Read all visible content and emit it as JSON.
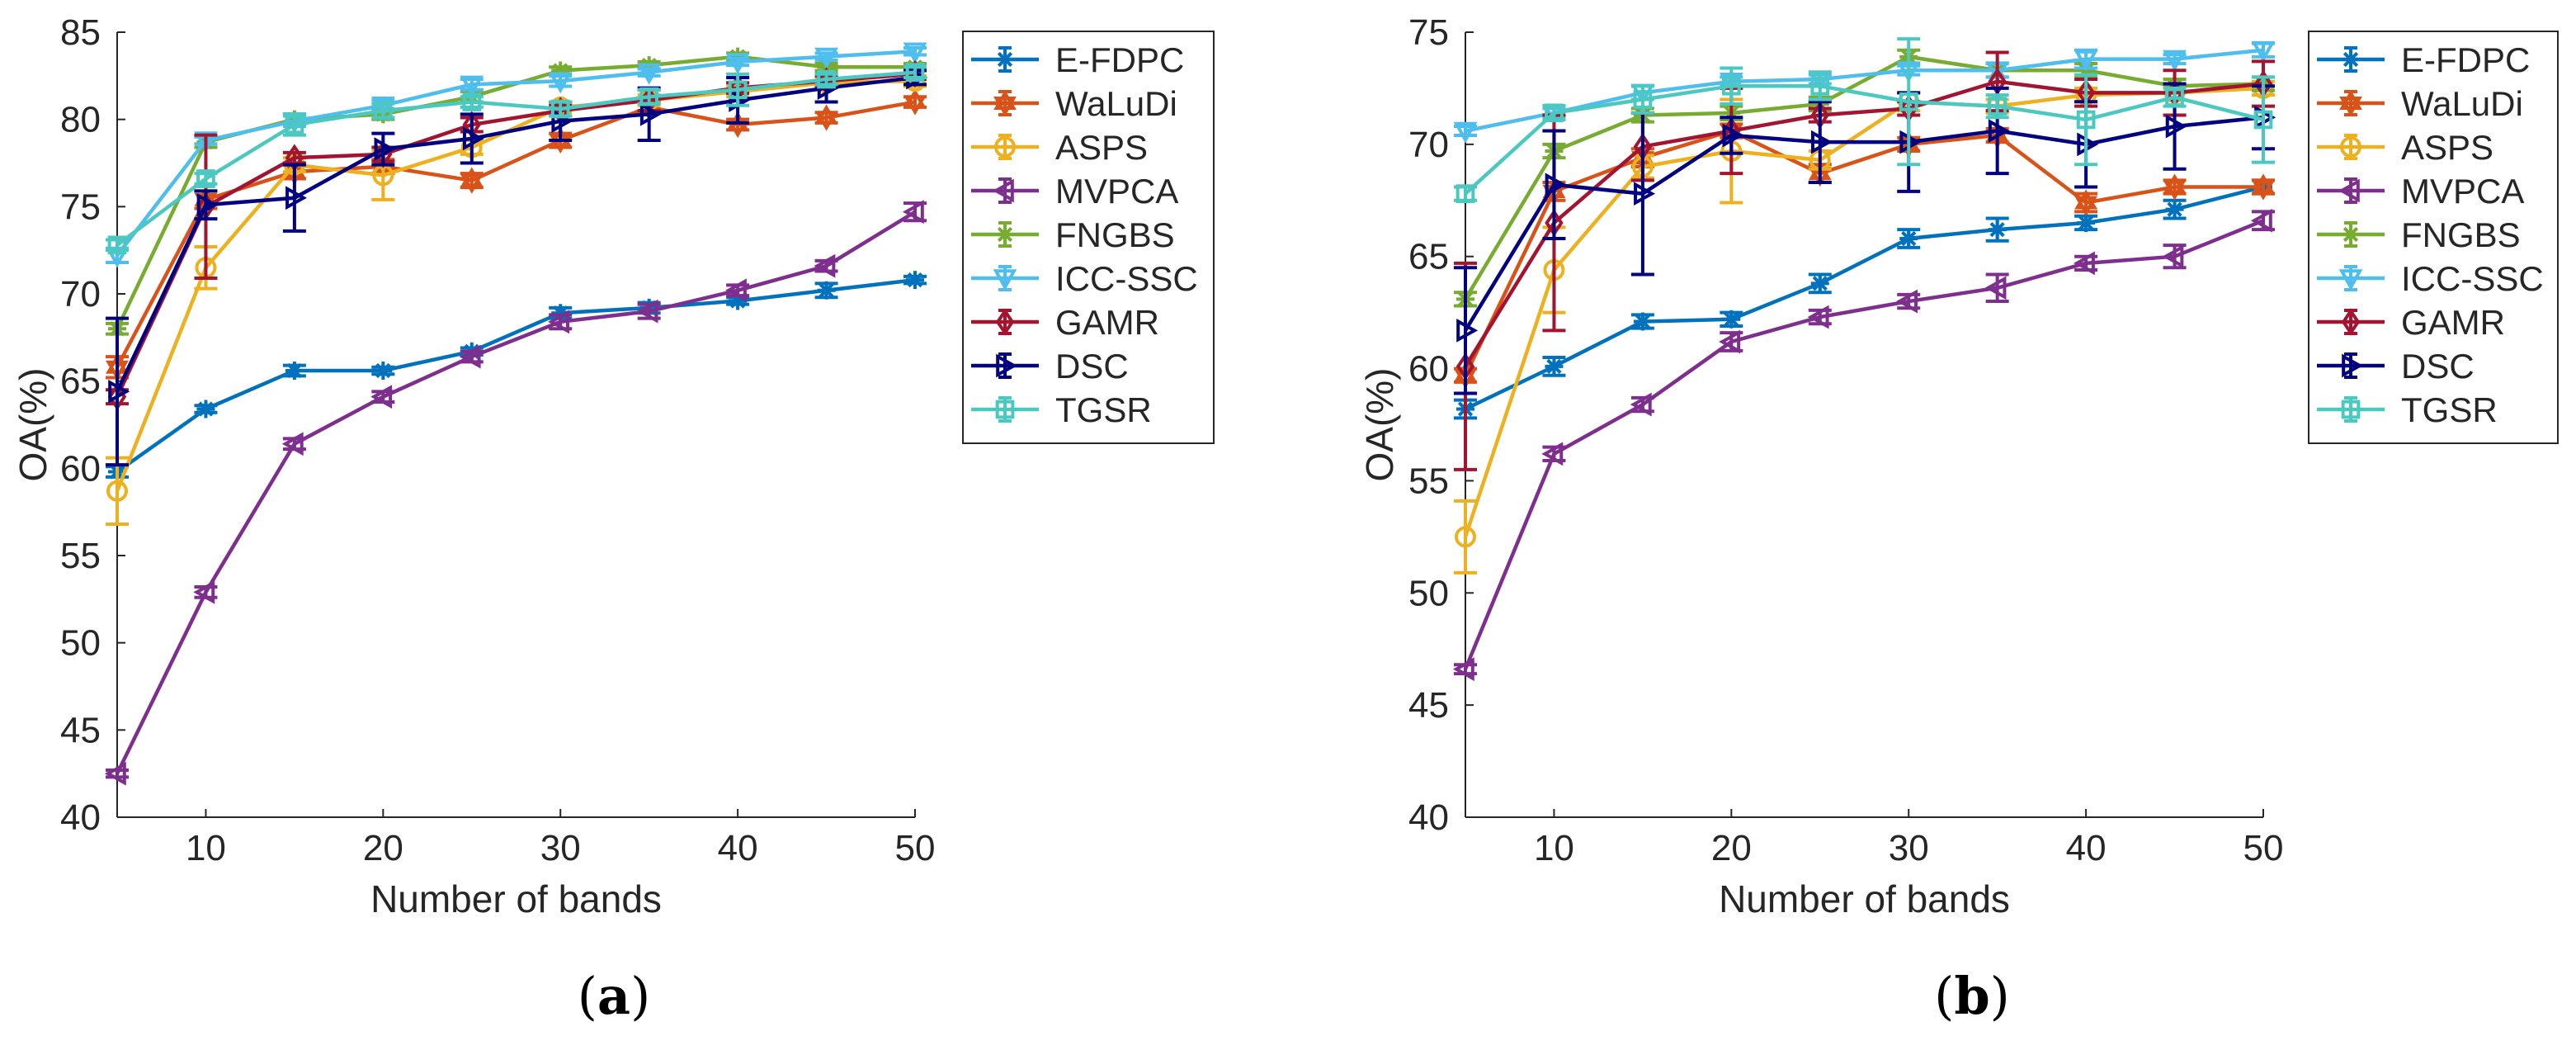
{
  "chart_data": [
    {
      "type": "line",
      "panel_label_open": "(",
      "panel_label_letter": "a",
      "panel_label_close": ")",
      "xlabel": "Number of bands",
      "ylabel": "OA(%)",
      "x": [
        5,
        10,
        15,
        20,
        25,
        30,
        35,
        40,
        45,
        50
      ],
      "xlim": [
        5,
        50
      ],
      "ylim": [
        40,
        85
      ],
      "xticks": [
        10,
        20,
        30,
        40,
        50
      ],
      "yticks": [
        40,
        45,
        50,
        55,
        60,
        65,
        70,
        75,
        80,
        85
      ],
      "grid": false,
      "legend_position": "outside-right-top",
      "series": [
        {
          "name": "E-FDPC",
          "color": "#0072BD",
          "marker": "asterisk",
          "values": [
            59.8,
            63.4,
            65.6,
            65.6,
            66.7,
            68.9,
            69.2,
            69.6,
            70.2,
            70.8
          ],
          "err": [
            0.3,
            0.2,
            0.3,
            0.2,
            0.2,
            0.3,
            0.3,
            0.2,
            0.4,
            0.2
          ]
        },
        {
          "name": "WaLuDi",
          "color": "#D95319",
          "marker": "hexagram",
          "values": [
            65.8,
            75.4,
            77.0,
            77.3,
            76.5,
            78.8,
            80.7,
            79.7,
            80.1,
            81.0
          ],
          "err": [
            0.6,
            0.5,
            0.4,
            0.4,
            0.4,
            0.4,
            0.3,
            0.3,
            0.3,
            0.3
          ]
        },
        {
          "name": "ASPS",
          "color": "#EDB120",
          "marker": "circle",
          "values": [
            58.7,
            71.5,
            77.4,
            76.8,
            78.4,
            80.7,
            81.1,
            81.6,
            82.1,
            82.2
          ],
          "err": [
            1.9,
            1.2,
            0.4,
            1.4,
            0.4,
            0.3,
            0.3,
            0.3,
            0.3,
            0.3
          ]
        },
        {
          "name": "MVPCA",
          "color": "#7E2F8E",
          "marker": "triangle-left",
          "values": [
            42.5,
            52.9,
            61.4,
            64.1,
            66.4,
            68.4,
            69.0,
            70.2,
            71.6,
            74.7
          ],
          "err": [
            0.2,
            0.3,
            0.3,
            0.3,
            0.3,
            0.4,
            0.4,
            0.3,
            0.3,
            0.5
          ]
        },
        {
          "name": "FNGBS",
          "color": "#77AC30",
          "marker": "asterisk",
          "values": [
            68.0,
            78.7,
            80.0,
            80.3,
            81.3,
            82.8,
            83.1,
            83.6,
            83.0,
            83.0
          ],
          "err": [
            0.3,
            0.3,
            0.3,
            0.3,
            0.3,
            0.2,
            0.2,
            0.2,
            0.2,
            0.2
          ]
        },
        {
          "name": "ICC-SSC",
          "color": "#4DBEEE",
          "marker": "triangle-down",
          "values": [
            72.2,
            78.8,
            79.9,
            80.8,
            82.0,
            82.2,
            82.7,
            83.3,
            83.6,
            83.9
          ],
          "err": [
            0.4,
            0.2,
            0.3,
            0.3,
            0.3,
            0.3,
            0.2,
            0.2,
            0.2,
            0.2
          ]
        },
        {
          "name": "GAMR",
          "color": "#A2142F",
          "marker": "diamond",
          "values": [
            64.1,
            75.0,
            77.8,
            78.0,
            79.7,
            80.5,
            81.1,
            81.8,
            82.2,
            82.6
          ],
          "err": [
            0.4,
            4.1,
            0.3,
            0.4,
            0.4,
            0.3,
            0.6,
            0.3,
            0.3,
            0.3
          ]
        },
        {
          "name": "DSC",
          "color": "#000080",
          "marker": "triangle-right",
          "values": [
            64.4,
            75.1,
            75.5,
            78.3,
            78.9,
            79.9,
            80.3,
            81.1,
            81.8,
            82.4
          ],
          "err": [
            4.2,
            0.8,
            1.9,
            0.9,
            1.4,
            1.1,
            1.5,
            1.3,
            0.8,
            0.4
          ]
        },
        {
          "name": "TGSR",
          "color": "#4BC9C1",
          "marker": "square",
          "values": [
            72.8,
            76.6,
            79.7,
            80.5,
            81.0,
            80.6,
            81.3,
            81.7,
            82.3,
            82.7
          ],
          "err": [
            0.3,
            0.3,
            0.6,
            0.4,
            0.3,
            0.4,
            0.4,
            0.9,
            0.3,
            0.3
          ]
        }
      ]
    },
    {
      "type": "line",
      "panel_label_open": "(",
      "panel_label_letter": "b",
      "panel_label_close": ")",
      "xlabel": "Number of bands",
      "ylabel": "OA(%)",
      "x": [
        5,
        10,
        15,
        20,
        25,
        30,
        35,
        40,
        45,
        50
      ],
      "xlim": [
        5,
        50
      ],
      "ylim": [
        40,
        75
      ],
      "xticks": [
        10,
        20,
        30,
        40,
        50
      ],
      "yticks": [
        40,
        45,
        50,
        55,
        60,
        65,
        70,
        75
      ],
      "grid": false,
      "legend_position": "outside-right-top",
      "series": [
        {
          "name": "E-FDPC",
          "color": "#0072BD",
          "marker": "asterisk",
          "values": [
            58.2,
            60.1,
            62.1,
            62.2,
            63.8,
            65.8,
            66.2,
            66.5,
            67.1,
            68.1
          ],
          "err": [
            0.4,
            0.4,
            0.3,
            0.3,
            0.4,
            0.4,
            0.5,
            0.3,
            0.4,
            0.3
          ]
        },
        {
          "name": "WaLuDi",
          "color": "#D95319",
          "marker": "hexagram",
          "values": [
            59.7,
            67.9,
            69.4,
            70.6,
            68.7,
            70.0,
            70.4,
            67.4,
            68.1,
            68.1
          ],
          "err": [
            0.3,
            0.4,
            0.4,
            0.3,
            0.4,
            0.3,
            0.3,
            0.4,
            0.3,
            0.3
          ]
        },
        {
          "name": "ASPS",
          "color": "#EDB120",
          "marker": "circle",
          "values": [
            52.5,
            64.4,
            69.0,
            69.7,
            69.3,
            71.9,
            71.7,
            72.2,
            72.3,
            72.5
          ],
          "err": [
            1.6,
            1.9,
            0.5,
            2.3,
            0.4,
            0.4,
            0.3,
            0.3,
            0.3,
            0.3
          ]
        },
        {
          "name": "MVPCA",
          "color": "#7E2F8E",
          "marker": "triangle-left",
          "values": [
            46.6,
            56.2,
            58.4,
            61.2,
            62.3,
            63.0,
            63.6,
            64.7,
            65.0,
            66.6
          ],
          "err": [
            0.2,
            0.3,
            0.3,
            0.4,
            0.3,
            0.3,
            0.6,
            0.3,
            0.5,
            0.4
          ]
        },
        {
          "name": "FNGBS",
          "color": "#77AC30",
          "marker": "asterisk",
          "values": [
            63.1,
            69.7,
            71.3,
            71.4,
            71.8,
            73.9,
            73.3,
            73.3,
            72.6,
            72.7
          ],
          "err": [
            0.3,
            0.3,
            0.3,
            0.3,
            0.3,
            0.3,
            0.3,
            0.3,
            0.3,
            0.3
          ]
        },
        {
          "name": "ICC-SSC",
          "color": "#4DBEEE",
          "marker": "triangle-down",
          "values": [
            70.6,
            71.4,
            72.3,
            72.8,
            72.9,
            73.3,
            73.3,
            73.8,
            73.8,
            74.2
          ],
          "err": [
            0.2,
            0.2,
            0.3,
            0.2,
            0.2,
            0.2,
            0.3,
            0.4,
            0.2,
            0.3
          ]
        },
        {
          "name": "GAMR",
          "color": "#A2142F",
          "marker": "diamond",
          "values": [
            60.1,
            66.5,
            69.9,
            70.6,
            71.3,
            71.6,
            72.8,
            72.3,
            72.3,
            72.7
          ],
          "err": [
            4.6,
            4.8,
            1.5,
            1.9,
            0.3,
            0.3,
            1.3,
            0.6,
            1.0,
            1.0
          ]
        },
        {
          "name": "DSC",
          "color": "#000080",
          "marker": "triangle-right",
          "values": [
            61.7,
            68.2,
            67.8,
            70.4,
            70.1,
            70.1,
            70.6,
            70.0,
            70.8,
            71.2
          ],
          "err": [
            2.8,
            2.4,
            3.6,
            0.8,
            1.8,
            2.2,
            1.9,
            1.9,
            1.9,
            1.4
          ]
        },
        {
          "name": "TGSR",
          "color": "#4BC9C1",
          "marker": "square",
          "values": [
            67.8,
            71.4,
            72.0,
            72.6,
            72.6,
            71.9,
            71.7,
            71.1,
            72.1,
            71.1
          ],
          "err": [
            0.3,
            0.3,
            0.6,
            0.8,
            0.6,
            2.8,
            0.5,
            2.0,
            0.4,
            1.9
          ]
        }
      ]
    }
  ]
}
